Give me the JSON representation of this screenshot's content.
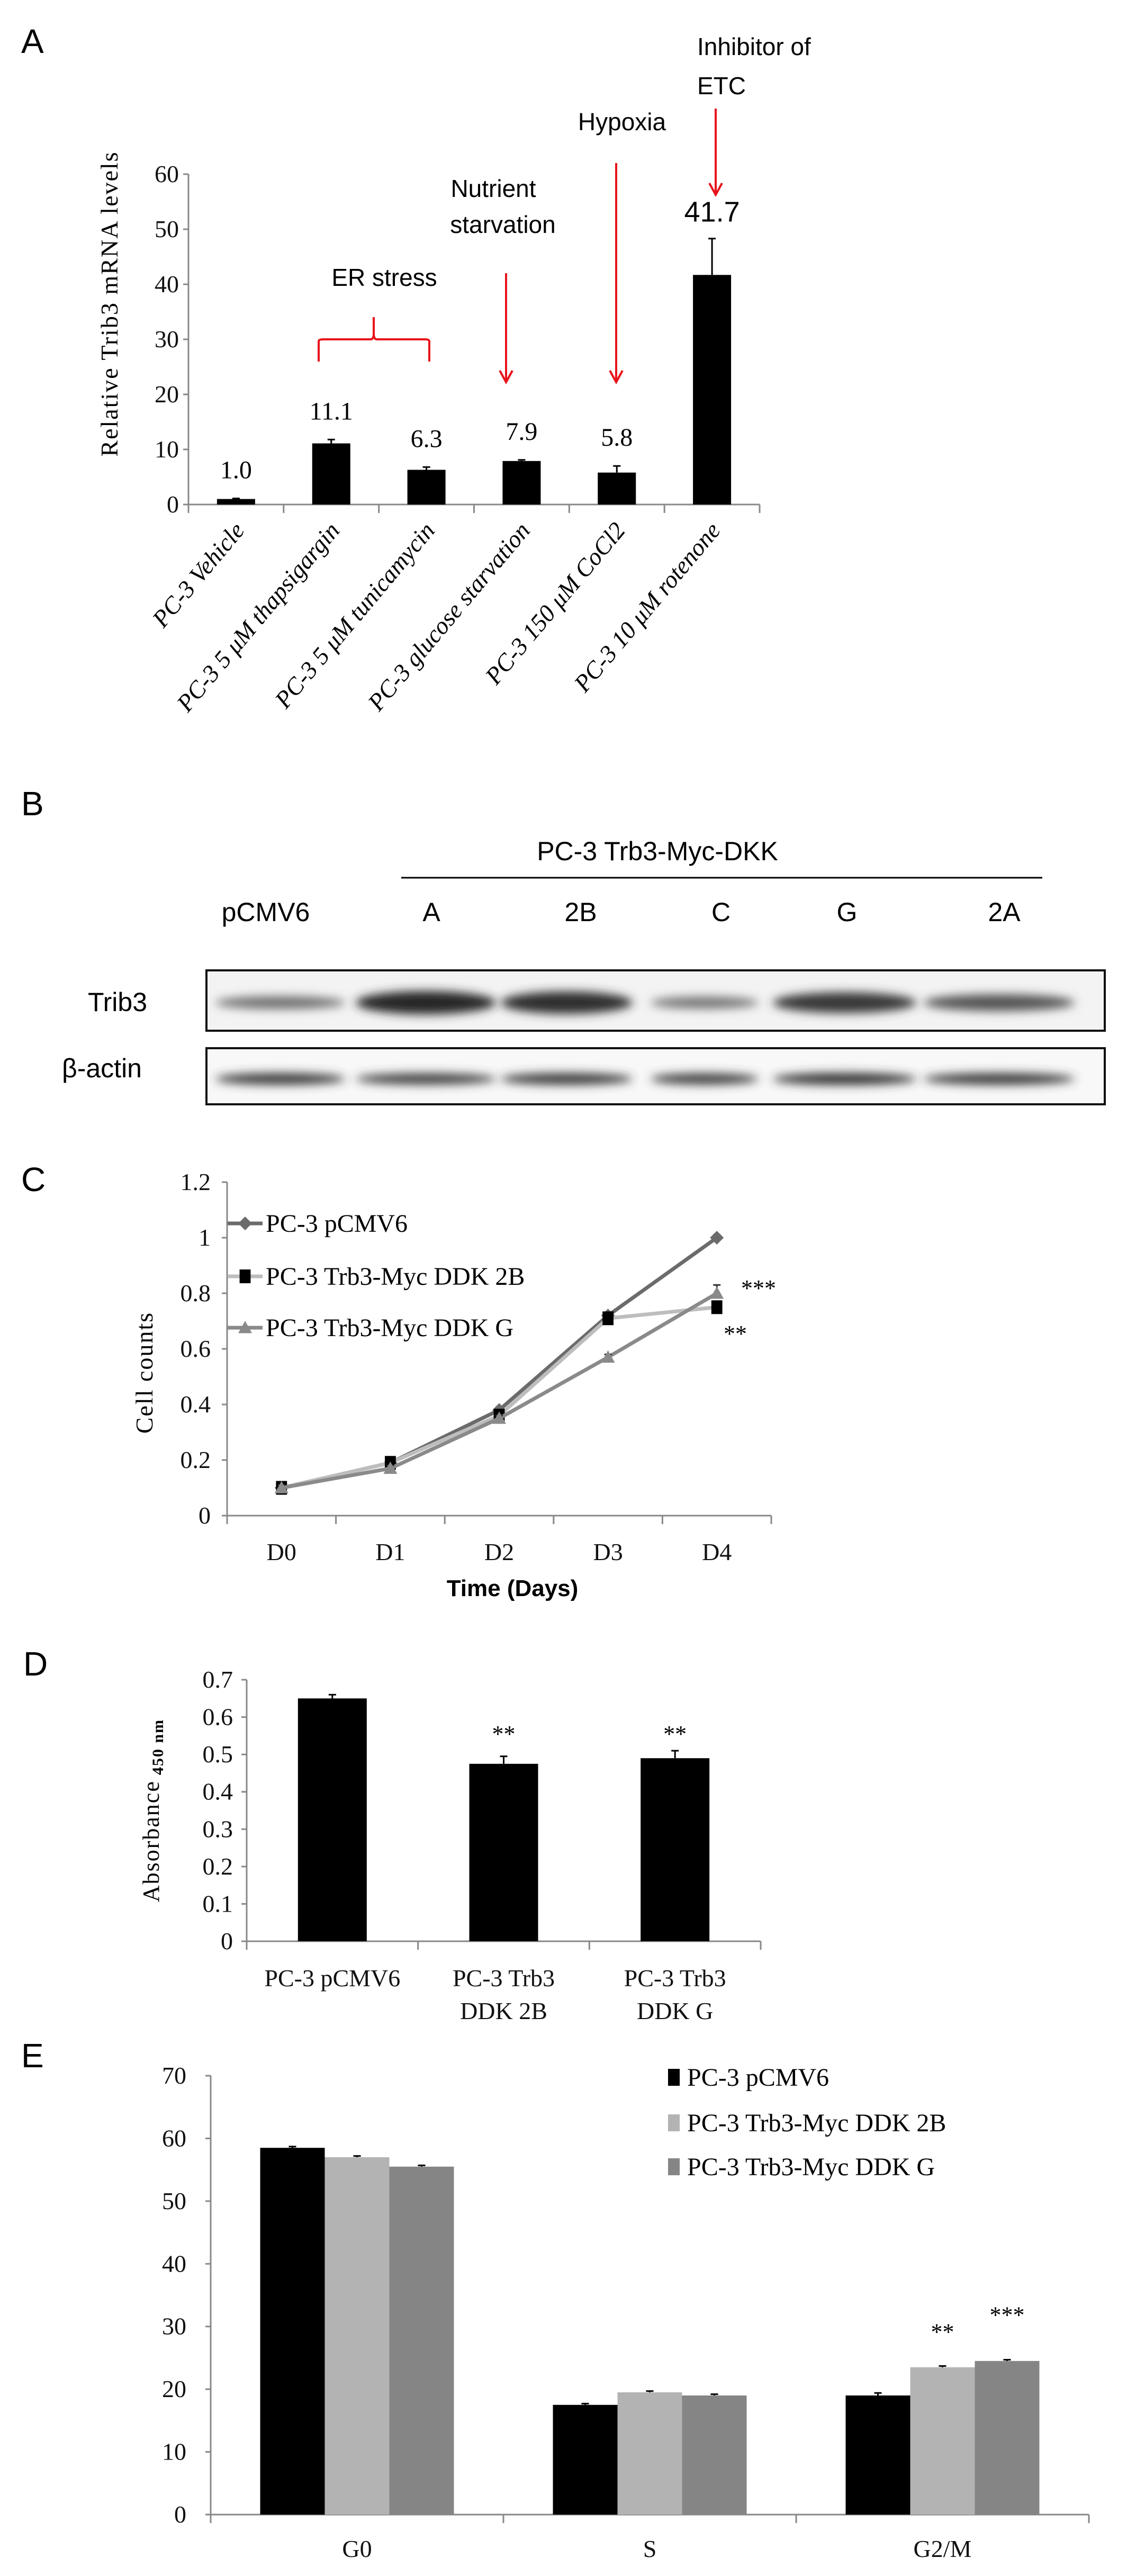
{
  "panels": {
    "a": {
      "letter": "A"
    },
    "b": {
      "letter": "B"
    },
    "c": {
      "letter": "C"
    },
    "d": {
      "letter": "D"
    },
    "e": {
      "letter": "E"
    }
  },
  "annotations": {
    "er_stress": "ER stress",
    "nutrient_line1": "Nutrient",
    "nutrient_line2": "starvation",
    "hypoxia": "Hypoxia",
    "etc_line1": "Inhibitor of",
    "etc_line2": "ETC",
    "arrow_color": "#e8141b"
  },
  "blot": {
    "group_label": "PC-3 Trb3-Myc-DKK",
    "lanes": [
      "pCMV6",
      "A",
      "2B",
      "C",
      "G",
      "2A"
    ],
    "rows": [
      {
        "label": "Trib3",
        "band_intensity": [
          0.35,
          1.0,
          0.95,
          0.3,
          0.85,
          0.6
        ]
      },
      {
        "label": "β-actin",
        "band_intensity": [
          0.85,
          0.8,
          0.85,
          0.8,
          0.9,
          0.85
        ]
      }
    ]
  },
  "chart_data": [
    {
      "id": "A",
      "type": "bar",
      "ylabel": "Relative Trib3 mRNA levels",
      "xlabel": "",
      "ylim": [
        0,
        60
      ],
      "yticks": [
        "0",
        "10",
        "20",
        "30",
        "40",
        "50",
        "60"
      ],
      "categories": [
        "PC-3 Vehicle",
        "PC-3 5 μM thapsigargin",
        "PC-3 5 μM tunicamycin",
        "PC-3 glucose starvation",
        "PC-3 150 μM CoCl2",
        "PC-3 10 μM rotenone"
      ],
      "values": [
        1.0,
        11.1,
        6.3,
        7.9,
        5.8,
        41.7
      ],
      "errors": [
        0.1,
        0.7,
        0.5,
        0.2,
        1.2,
        6.6
      ],
      "data_labels": [
        "1.0",
        "11.1",
        "6.3",
        "7.9",
        "5.8",
        "41.7"
      ],
      "bar_color": "#000000",
      "grid": false
    },
    {
      "id": "C",
      "type": "line",
      "ylabel": "Cell counts",
      "xlabel": "Time (Days)",
      "ylim": [
        0,
        1.2
      ],
      "yticks": [
        "0",
        "0.2",
        "0.4",
        "0.6",
        "0.8",
        "1",
        "1.2"
      ],
      "categories": [
        "D0",
        "D1",
        "D2",
        "D3",
        "D4"
      ],
      "legend": "top-left",
      "grid": false,
      "series": [
        {
          "name": "PC-3 pCMV6",
          "values": [
            0.1,
            0.19,
            0.38,
            0.72,
            1.0
          ],
          "errors": [
            0.01,
            0.01,
            0.01,
            0.01,
            0.01
          ],
          "color": "#6b6b6b",
          "marker": "diamond",
          "marker_color": "#6b6b6b"
        },
        {
          "name": "PC-3 Trb3-Myc DDK 2B",
          "values": [
            0.1,
            0.19,
            0.36,
            0.71,
            0.75
          ],
          "errors": [
            0.01,
            0.01,
            0.01,
            0.01,
            0.01
          ],
          "color": "#bdbdbd",
          "marker": "square",
          "marker_color": "#000000"
        },
        {
          "name": "PC-3 Trb3-Myc DDK G",
          "values": [
            0.1,
            0.17,
            0.35,
            0.57,
            0.8
          ],
          "errors": [
            0.01,
            0.01,
            0.01,
            0.01,
            0.03
          ],
          "color": "#8a8a8a",
          "marker": "triangle",
          "marker_color": "#8a8a8a"
        }
      ],
      "significance": [
        {
          "series": "PC-3 Trb3-Myc DDK G",
          "x": "D4",
          "label": "***"
        },
        {
          "series": "PC-3 Trb3-Myc DDK 2B",
          "x": "D4",
          "label": "**"
        }
      ]
    },
    {
      "id": "D",
      "type": "bar",
      "ylabel": "Absorbance",
      "ylabel_sub": "450 nm",
      "xlabel": "",
      "ylim": [
        0,
        0.7
      ],
      "yticks": [
        "0",
        "0.1",
        "0.2",
        "0.3",
        "0.4",
        "0.5",
        "0.6",
        "0.7"
      ],
      "categories": [
        [
          "PC-3 pCMV6"
        ],
        [
          "PC-3 Trb3",
          "DDK 2B"
        ],
        [
          "PC-3 Trb3",
          "DDK G"
        ]
      ],
      "values": [
        0.65,
        0.475,
        0.49
      ],
      "errors": [
        0.01,
        0.02,
        0.02
      ],
      "significance": [
        "",
        "**",
        "**"
      ],
      "bar_color": "#000000",
      "grid": false
    },
    {
      "id": "E",
      "type": "bar",
      "xlabel": "",
      "ylabel": "",
      "ylim": [
        0,
        70
      ],
      "yticks": [
        "0",
        "10",
        "20",
        "30",
        "40",
        "50",
        "60",
        "70"
      ],
      "categories": [
        "G0",
        "S",
        "G2/M"
      ],
      "legend": "top-right",
      "grid": false,
      "series": [
        {
          "name": "PC-3 pCMV6",
          "values": [
            58.5,
            17.5,
            19.0
          ],
          "errors": [
            0.2,
            0.2,
            0.4
          ],
          "color": "#000000",
          "significance": [
            "",
            "",
            ""
          ]
        },
        {
          "name": "PC-3 Trb3-Myc DDK 2B",
          "values": [
            57.0,
            19.5,
            23.5
          ],
          "errors": [
            0.2,
            0.2,
            0.2
          ],
          "color": "#b3b3b3",
          "significance": [
            "",
            "",
            "**"
          ]
        },
        {
          "name": "PC-3 Trb3-Myc DDK G",
          "values": [
            55.5,
            19.0,
            24.5
          ],
          "errors": [
            0.2,
            0.2,
            0.2
          ],
          "color": "#858585",
          "significance": [
            "",
            "",
            "***"
          ]
        }
      ]
    }
  ]
}
